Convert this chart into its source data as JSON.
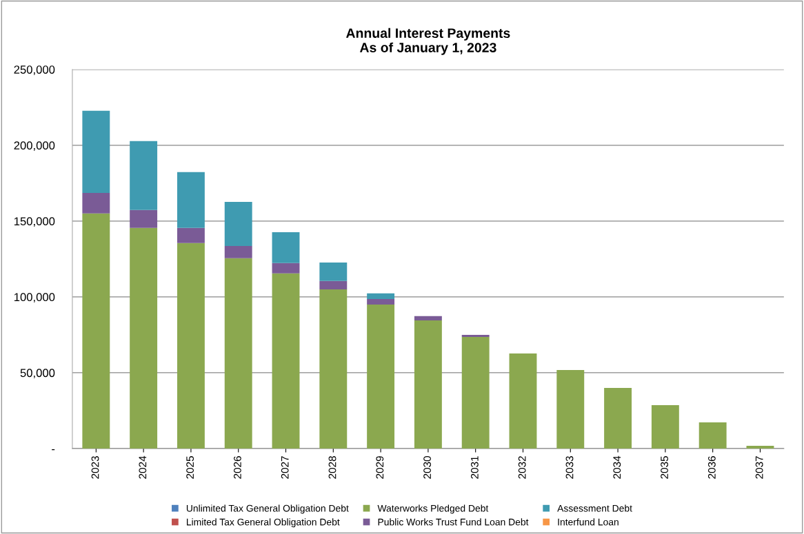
{
  "chart_data": {
    "type": "bar",
    "title": "Annual Interest Payments\nAs of January 1, 2023",
    "stacked": true,
    "categories": [
      "2023",
      "2024",
      "2025",
      "2026",
      "2027",
      "2028",
      "2029",
      "2030",
      "2031",
      "2032",
      "2033",
      "2034",
      "2035",
      "2036",
      "2037"
    ],
    "series": [
      {
        "name": "Unlimited Tax General Obligation Debt",
        "color": "#4f81bd",
        "values": [
          0,
          0,
          0,
          0,
          0,
          0,
          0,
          0,
          0,
          0,
          0,
          0,
          0,
          0,
          0
        ]
      },
      {
        "name": "Limited Tax General Obligation Debt",
        "color": "#c0504d",
        "values": [
          0,
          0,
          0,
          0,
          0,
          0,
          0,
          0,
          0,
          0,
          0,
          0,
          0,
          0,
          0
        ]
      },
      {
        "name": "Waterworks Pledged Debt",
        "color": "#8ba84f",
        "values": [
          155000,
          145500,
          135500,
          125500,
          115500,
          105000,
          95000,
          84500,
          73600,
          62700,
          51800,
          40000,
          28600,
          17300,
          1800
        ]
      },
      {
        "name": "Public Works Trust Fund Loan Debt",
        "color": "#7a5b96",
        "values": [
          13600,
          11800,
          10000,
          8100,
          6800,
          5500,
          3600,
          2800,
          1400,
          0,
          0,
          0,
          0,
          0,
          0
        ]
      },
      {
        "name": "Assessment Debt",
        "color": "#3f9bb1",
        "values": [
          54100,
          45400,
          36800,
          29100,
          20400,
          12200,
          3700,
          0,
          0,
          0,
          0,
          0,
          0,
          0,
          0
        ]
      },
      {
        "name": "Interfund Loan",
        "color": "#f79646",
        "values": [
          0,
          0,
          0,
          0,
          0,
          0,
          0,
          0,
          0,
          0,
          0,
          0,
          0,
          0,
          0
        ]
      }
    ],
    "ylim": [
      0,
      250000
    ],
    "yticks": [
      {
        "value": 0,
        "label": "-"
      },
      {
        "value": 50000,
        "label": "50,000"
      },
      {
        "value": 100000,
        "label": "100,000"
      },
      {
        "value": 150000,
        "label": "150,000"
      },
      {
        "value": 200000,
        "label": "200,000"
      },
      {
        "value": 250000,
        "label": "250,000"
      }
    ],
    "grid": "y",
    "legend": "bottom"
  }
}
